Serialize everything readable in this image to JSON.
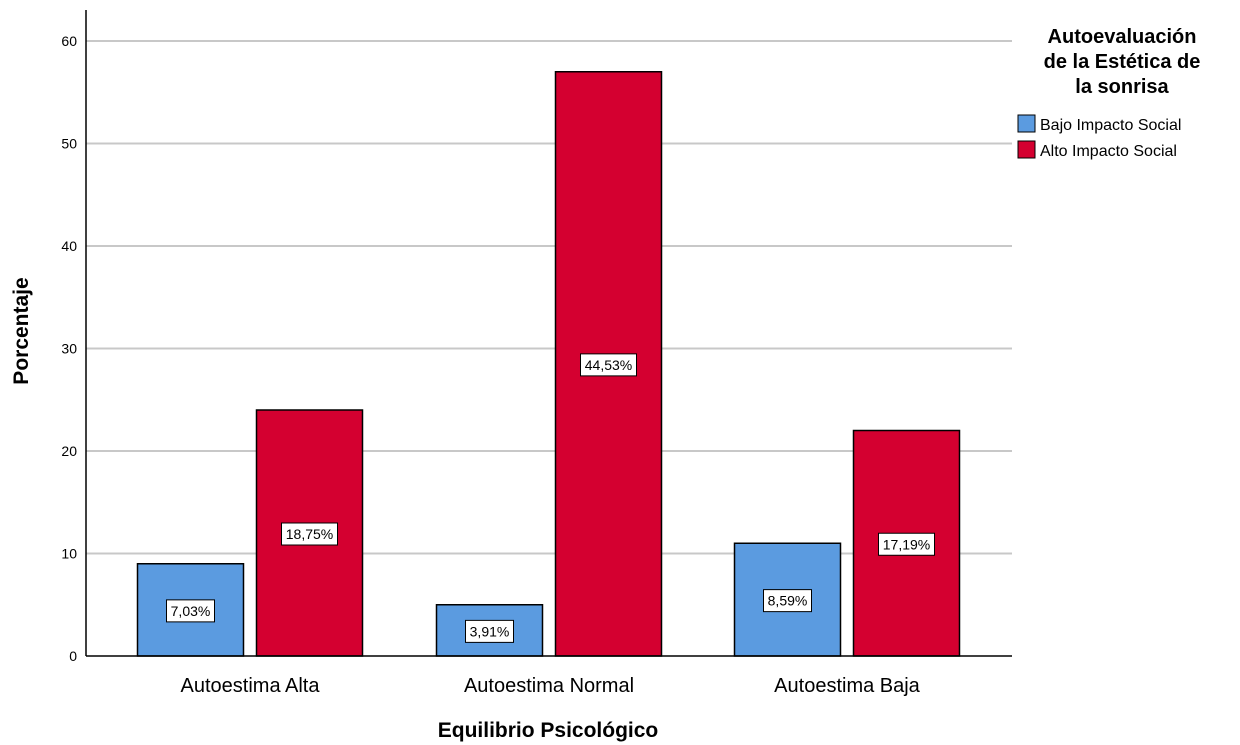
{
  "chart_data": {
    "type": "bar",
    "categories": [
      "Autoestima Alta",
      "Autoestima Normal",
      "Autoestima Baja"
    ],
    "series": [
      {
        "name": "Bajo Impacto Social",
        "color": "#5B9BE0",
        "values": [
          9,
          5,
          11
        ],
        "labels": [
          "7,03%",
          "3,91%",
          "8,59%"
        ]
      },
      {
        "name": "Alto Impacto Social",
        "color": "#D40030",
        "values": [
          24,
          57,
          22
        ],
        "labels": [
          "18,75%",
          "44,53%",
          "17,19%"
        ]
      }
    ],
    "xlabel": "Equilibrio Psicológico",
    "ylabel": "Porcentaje",
    "ylim": [
      0,
      63
    ],
    "yticks": [
      0,
      10,
      20,
      30,
      40,
      50,
      60
    ],
    "grid": true,
    "legend": {
      "title_lines": [
        "Autoevaluación",
        "de la Estética de",
        "la sonrisa"
      ],
      "position": "top-right"
    }
  }
}
